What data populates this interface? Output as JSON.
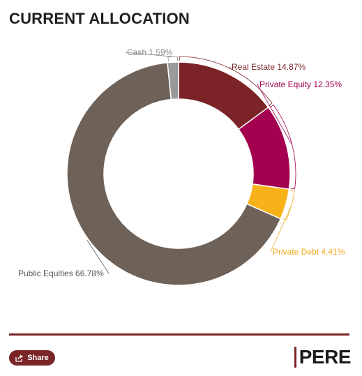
{
  "chart_data": {
    "type": "pie",
    "variant": "donut",
    "title": "CURRENT ALLOCATION",
    "slices": [
      {
        "label": "Real Estate",
        "value": 14.87,
        "display": "Real Estate 14.87%",
        "color": "#7b2326",
        "label_color": "#7b2326"
      },
      {
        "label": "Private Equity",
        "value": 12.35,
        "display": "Private Equity 12.35%",
        "color": "#a3004f",
        "label_color": "#a3004f"
      },
      {
        "label": "Private Debt",
        "value": 4.41,
        "display": "Private Debt 4.41%",
        "color": "#f7b21a",
        "label_color": "#f0a818"
      },
      {
        "label": "Public Equities",
        "value": 66.78,
        "display": "Public Equities 66.78%",
        "color": "#6e6158",
        "label_color": "#555555"
      },
      {
        "label": "Cash",
        "value": 1.59,
        "display": "Cash 1.59%",
        "color": "#9a9a9a",
        "label_color": "#888888"
      }
    ],
    "start": "top, clockwise",
    "legend": "none"
  },
  "footer": {
    "share_label": "Share",
    "brand": "PERE",
    "accent_color": "#7a2526"
  }
}
